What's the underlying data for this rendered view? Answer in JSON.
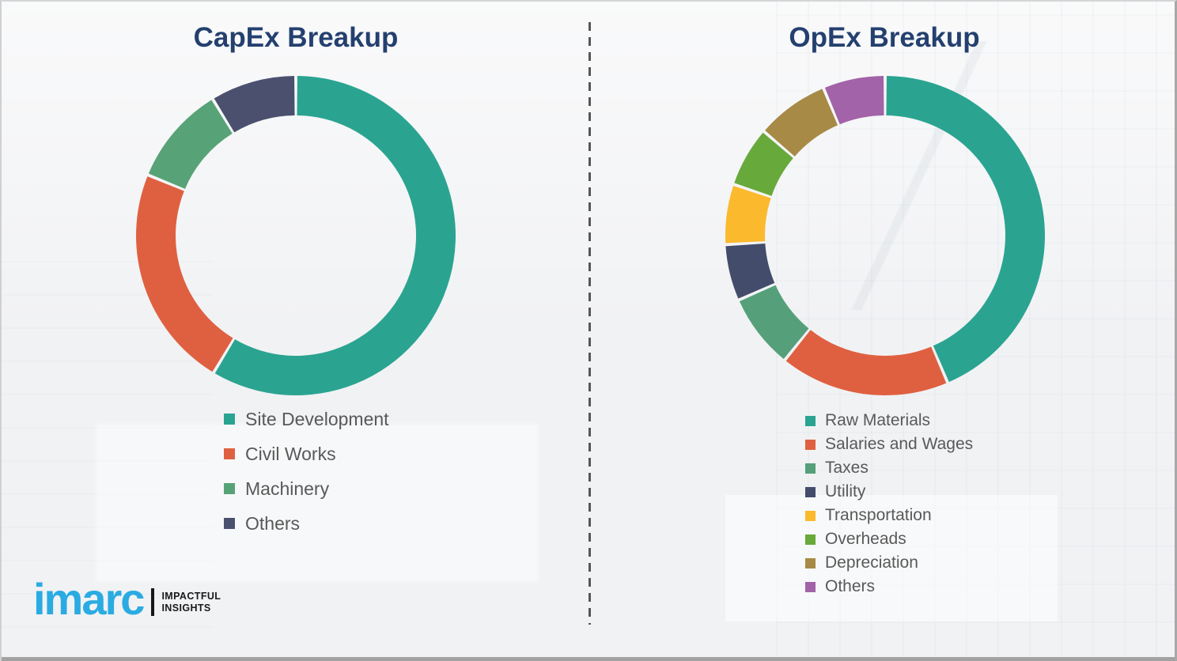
{
  "chart_data": [
    {
      "type": "pie",
      "subtype": "donut",
      "title": "CapEx Breakup",
      "categories": [
        "Site Development",
        "Civil Works",
        "Machinery",
        "Others"
      ],
      "values": [
        58.6,
        22.6,
        10.1,
        8.7
      ],
      "colors": [
        "#2aa491",
        "#df6040",
        "#57a377",
        "#4a506e"
      ],
      "start_angle_deg": 0,
      "direction": "clockwise",
      "donut_hole_ratio": 0.75,
      "segment_gap_deg": 1.1,
      "legend_position": "below-left",
      "data_labels": false
    },
    {
      "type": "pie",
      "subtype": "donut",
      "title": "OpEx Breakup",
      "categories": [
        "Raw Materials",
        "Salaries and Wages",
        "Taxes",
        "Utility",
        "Transportation",
        "Overheads",
        "Depreciation",
        "Others"
      ],
      "values": [
        43.6,
        17.2,
        7.6,
        5.7,
        6.1,
        6.1,
        7.4,
        6.3
      ],
      "colors": [
        "#2aa491",
        "#df6040",
        "#55a07a",
        "#434c6b",
        "#fbb92d",
        "#68a93b",
        "#a78a46",
        "#a263a8"
      ],
      "start_angle_deg": 0,
      "direction": "clockwise",
      "donut_hole_ratio": 0.75,
      "segment_gap_deg": 1.1,
      "legend_position": "below-left",
      "data_labels": false
    }
  ],
  "logo": {
    "brand": "imarc",
    "tagline_line1": "IMPACTFUL",
    "tagline_line2": "INSIGHTS",
    "brand_color": "#2aabe2"
  },
  "style": {
    "title_color": "#24406f",
    "legend_text_color": "#595959",
    "background_color": "#f1f2f4",
    "divider_color": "#565656"
  }
}
